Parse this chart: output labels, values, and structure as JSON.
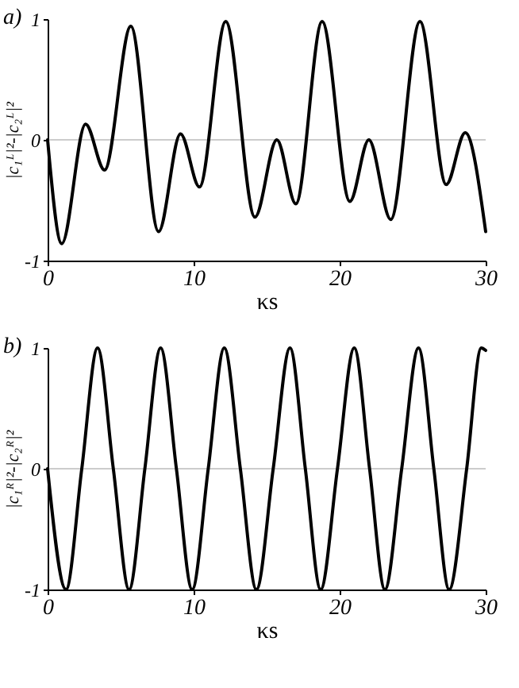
{
  "chart_data": [
    {
      "type": "line",
      "title": "a)",
      "xlabel": "κs",
      "ylabel": "|c₁ᴸ|²-|c₂ᴸ|²",
      "x": [
        0,
        0.97,
        2.6,
        3.9,
        5.7,
        7.6,
        9.1,
        10.4,
        12.2,
        14.2,
        15.7,
        17.0,
        18.8,
        20.7,
        22.0,
        23.5,
        25.5,
        27.3,
        28.6,
        30
      ],
      "series": [
        {
          "color": "#000000",
          "values": [
            0,
            -0.86,
            0.13,
            -0.25,
            0.94,
            -0.76,
            0.05,
            -0.39,
            0.98,
            -0.64,
            0.0,
            -0.53,
            0.98,
            -0.51,
            0.0,
            -0.66,
            0.98,
            -0.37,
            0.06,
            -0.76
          ]
        }
      ],
      "xlim": [
        0,
        30
      ],
      "ylim": [
        -1,
        1
      ],
      "xticks": [
        0,
        10,
        20,
        30
      ],
      "yticks": [
        -1,
        0,
        1
      ],
      "ref_lines": [
        {
          "axis": "y",
          "value": 0,
          "color": "#cccccc"
        }
      ]
    },
    {
      "type": "line",
      "title": "b)",
      "xlabel": "κs",
      "ylabel": "|c₁ᴿ|²-|c₂ᴿ|²",
      "x": [
        0,
        1.26,
        2.34,
        3.42,
        4.5,
        5.58,
        6.66,
        7.74,
        8.82,
        9.9,
        11.0,
        12.1,
        13.2,
        14.3,
        15.45,
        16.6,
        17.65,
        18.7,
        19.85,
        21.0,
        22.05,
        23.1,
        24.25,
        25.4,
        26.45,
        27.5,
        28.7,
        29.7,
        30
      ],
      "series": [
        {
          "color": "#000000",
          "values": [
            0,
            -1,
            0,
            1,
            0,
            -1,
            0,
            1,
            0,
            -1,
            0,
            1,
            0,
            -1,
            0,
            1,
            0,
            -1,
            0,
            1,
            0,
            -1,
            0,
            1,
            0,
            -1,
            0,
            1,
            0.98
          ]
        }
      ],
      "xlim": [
        0,
        30
      ],
      "ylim": [
        -1,
        1
      ],
      "xticks": [
        0,
        10,
        20,
        30
      ],
      "yticks": [
        -1,
        0,
        1
      ],
      "ref_lines": [
        {
          "axis": "y",
          "value": 0,
          "color": "#cccccc"
        }
      ]
    }
  ]
}
